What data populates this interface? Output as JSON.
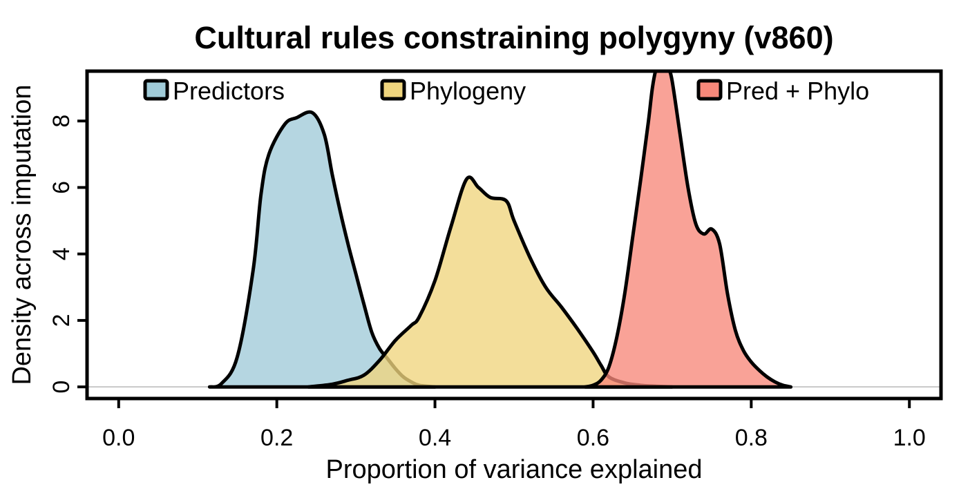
{
  "chart_data": {
    "type": "area",
    "title": "Cultural rules constraining polygyny (v860)",
    "xlabel": "Proportion of variance explained",
    "ylabel": "Density across imputation",
    "xlim": [
      -0.04,
      1.04
    ],
    "ylim": [
      -0.35,
      9.5
    ],
    "xticks": [
      "0.0",
      "0.2",
      "0.4",
      "0.6",
      "0.8",
      "1.0"
    ],
    "xtick_values": [
      0.0,
      0.2,
      0.4,
      0.6,
      0.8,
      1.0
    ],
    "yticks": [
      "0",
      "2",
      "4",
      "6",
      "8"
    ],
    "ytick_values": [
      0,
      2,
      4,
      6,
      8
    ],
    "legend_position": "top",
    "grid": false,
    "series": [
      {
        "name": "Predictors",
        "color": "#a0cbd8",
        "x": [
          0.115,
          0.13,
          0.15,
          0.17,
          0.18,
          0.19,
          0.21,
          0.225,
          0.245,
          0.26,
          0.27,
          0.28,
          0.29,
          0.3,
          0.31,
          0.32,
          0.33,
          0.34,
          0.35,
          0.36,
          0.37,
          0.38,
          0.4
        ],
        "y": [
          0.0,
          0.1,
          0.9,
          3.5,
          5.8,
          7.0,
          7.9,
          8.1,
          8.25,
          7.6,
          6.4,
          5.3,
          4.3,
          3.4,
          2.5,
          1.65,
          1.15,
          0.85,
          0.55,
          0.3,
          0.15,
          0.05,
          0.0
        ]
      },
      {
        "name": "Phylogeny",
        "color": "#efd57e",
        "x": [
          0.24,
          0.27,
          0.29,
          0.31,
          0.33,
          0.35,
          0.37,
          0.38,
          0.4,
          0.42,
          0.44,
          0.455,
          0.47,
          0.49,
          0.5,
          0.52,
          0.54,
          0.56,
          0.58,
          0.6,
          0.61,
          0.62,
          0.64,
          0.66,
          0.68,
          0.7
        ],
        "y": [
          0.0,
          0.08,
          0.2,
          0.35,
          0.8,
          1.4,
          1.85,
          2.1,
          3.2,
          4.8,
          6.25,
          6.0,
          5.7,
          5.6,
          5.0,
          3.9,
          3.0,
          2.4,
          1.75,
          1.05,
          0.65,
          0.3,
          0.12,
          0.05,
          0.02,
          0.0
        ]
      },
      {
        "name": "Pred + Phylo",
        "color": "#f7887a",
        "x": [
          0.59,
          0.6,
          0.61,
          0.62,
          0.63,
          0.64,
          0.65,
          0.66,
          0.67,
          0.675,
          0.68,
          0.685,
          0.69,
          0.695,
          0.7,
          0.71,
          0.72,
          0.73,
          0.74,
          0.75,
          0.76,
          0.77,
          0.78,
          0.79,
          0.8,
          0.81,
          0.82,
          0.83,
          0.84,
          0.85
        ],
        "y": [
          0.0,
          0.05,
          0.2,
          0.6,
          1.5,
          2.8,
          4.5,
          6.2,
          8.0,
          9.0,
          9.6,
          9.8,
          9.8,
          9.6,
          9.2,
          7.6,
          6.0,
          4.9,
          4.6,
          4.75,
          4.3,
          2.8,
          1.7,
          1.1,
          0.75,
          0.5,
          0.3,
          0.15,
          0.05,
          0.0
        ]
      }
    ]
  }
}
